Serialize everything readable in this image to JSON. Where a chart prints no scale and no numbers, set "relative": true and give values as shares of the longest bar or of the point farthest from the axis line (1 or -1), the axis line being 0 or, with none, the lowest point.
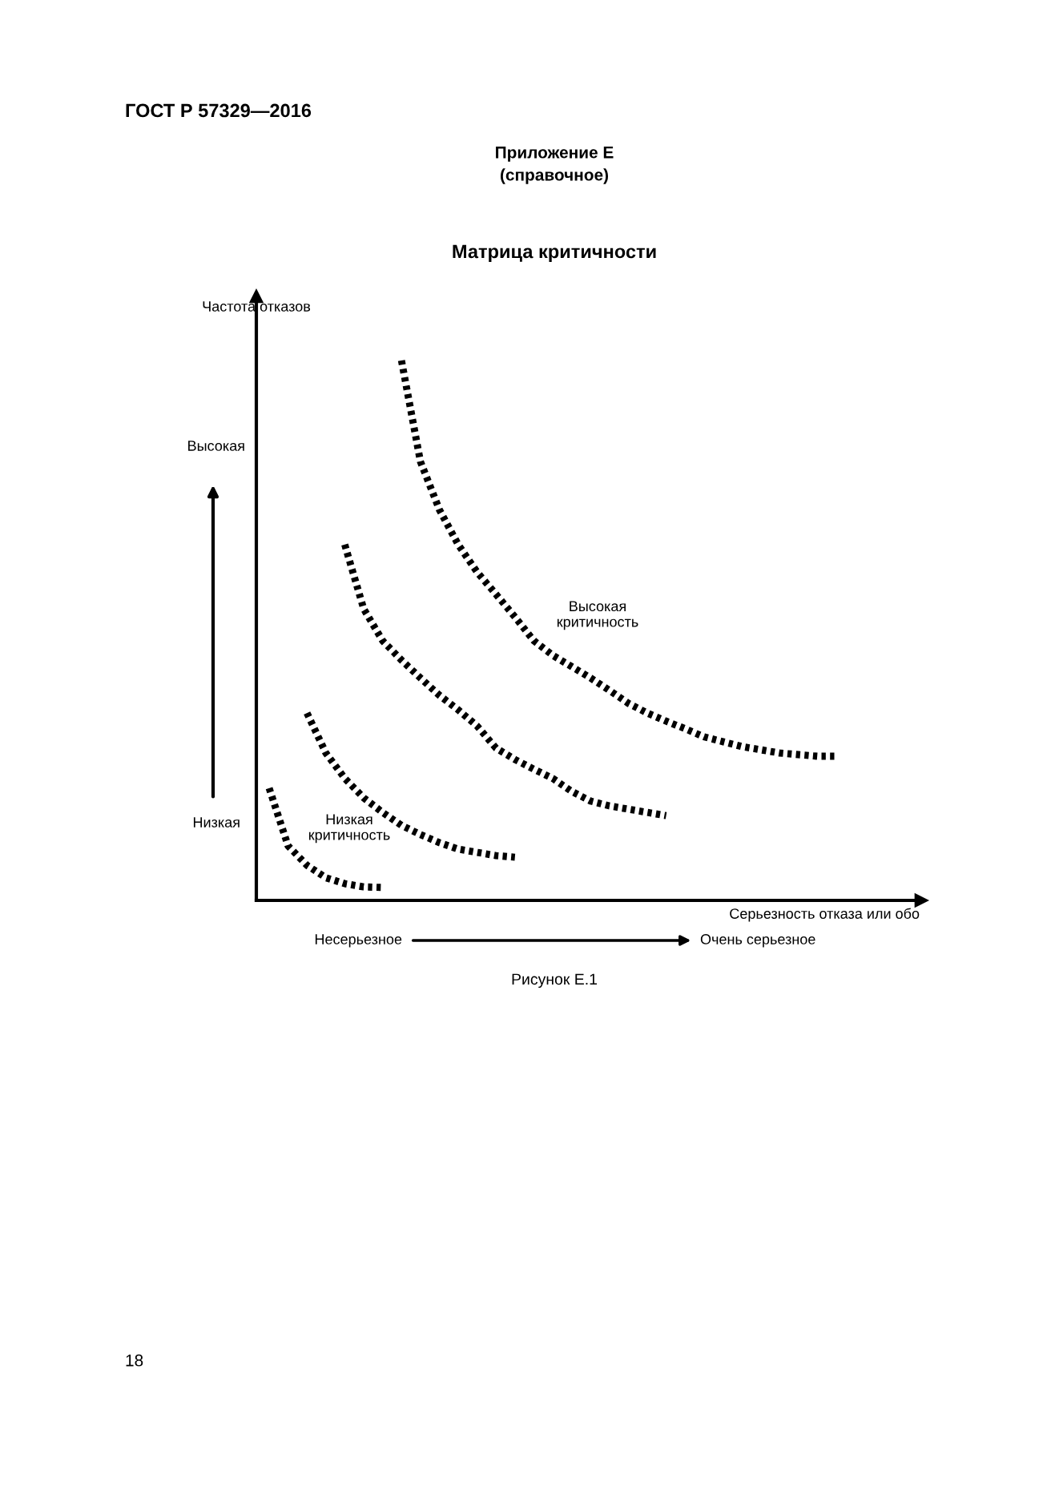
{
  "chart_data": {
    "type": "line",
    "title": "Матрица критичности",
    "ylabel": "Частота отказов",
    "xlabel": "Серьезность отказа или обо",
    "relative": true,
    "line_style": "dotted",
    "categories": [
      null,
      null,
      null,
      null,
      null,
      null,
      null,
      null,
      null,
      null,
      null,
      null,
      null,
      null,
      null,
      null,
      null,
      null,
      null,
      null,
      null,
      null,
      null,
      null,
      null,
      null,
      null,
      null,
      null,
      null,
      null
    ],
    "series": [
      {
        "color": "#000000",
        "values": [
          0.208,
          0.101,
          0.065,
          0.042,
          0.031,
          0.025,
          0.024,
          null,
          null,
          null,
          null,
          null,
          null,
          null,
          null,
          null,
          null,
          null,
          null,
          null,
          null,
          null,
          null,
          null,
          null,
          null,
          null,
          null,
          null,
          null,
          null
        ]
      },
      {
        "color": "#000000",
        "values": [
          null,
          null,
          0.347,
          0.273,
          0.226,
          0.19,
          0.163,
          0.139,
          0.122,
          0.107,
          0.095,
          0.089,
          0.083,
          0.08,
          null,
          null,
          null,
          null,
          null,
          null,
          null,
          null,
          null,
          null,
          null,
          null,
          null,
          null,
          null,
          null,
          null
        ]
      },
      {
        "color": "#000000",
        "values": [
          null,
          null,
          null,
          null,
          0.659,
          0.54,
          0.481,
          0.445,
          0.412,
          0.38,
          0.353,
          0.323,
          0.282,
          0.261,
          0.243,
          0.226,
          0.202,
          0.184,
          0.175,
          0.169,
          0.163,
          0.157,
          null,
          null,
          null,
          null,
          null,
          null,
          null,
          null,
          null
        ]
      },
      {
        "color": "#000000",
        "values": [
          null,
          null,
          null,
          null,
          null,
          null,
          null,
          1,
          0.813,
          0.724,
          0.659,
          0.608,
          0.567,
          0.525,
          0.481,
          0.454,
          0.433,
          0.412,
          0.389,
          0.365,
          0.347,
          0.332,
          0.318,
          0.303,
          0.294,
          0.285,
          0.279,
          0.273,
          0.27,
          0.267,
          0.267
        ]
      }
    ],
    "annotations": [
      "ГОСТ Р 57329—2016",
      "Приложение Е",
      "(справочное)",
      "Высокая",
      "Низкая",
      "Высокая\nкритичность",
      "Низкая\nкритичность",
      "Несерьезное",
      "Очень серьезное",
      "Рисунок Е.1",
      "18"
    ]
  }
}
